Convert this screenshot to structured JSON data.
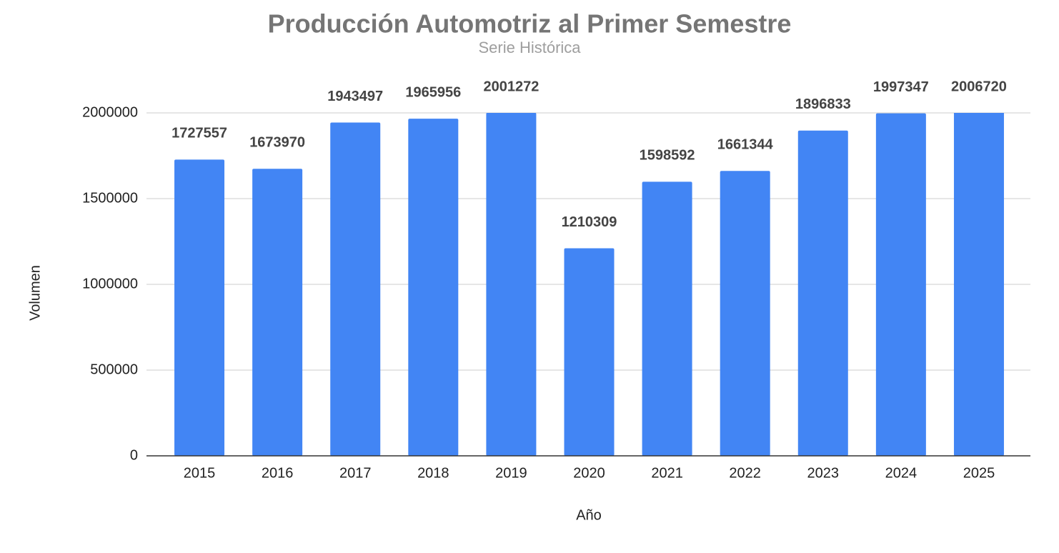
{
  "chart_data": {
    "type": "bar",
    "title": "Producción Automotriz al Primer Semestre",
    "subtitle": "Serie Histórica",
    "x_label": "Año",
    "y_label": "Volumen",
    "categories": [
      "2015",
      "2016",
      "2017",
      "2018",
      "2019",
      "2020",
      "2021",
      "2022",
      "2023",
      "2024",
      "2025"
    ],
    "values": [
      1727557,
      1673970,
      1943497,
      1965956,
      2001272,
      1210309,
      1598592,
      1661344,
      1896833,
      1997347,
      2006720
    ],
    "color": "#4285f4",
    "ylim": [
      0,
      2000000
    ],
    "yticks": [
      0,
      500000,
      1000000,
      1500000,
      2000000
    ],
    "grid": true
  }
}
